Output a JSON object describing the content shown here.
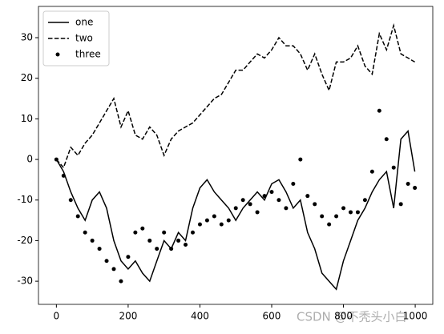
{
  "chart_data": {
    "type": "line",
    "x": [
      0,
      20,
      40,
      60,
      80,
      100,
      120,
      140,
      160,
      180,
      200,
      220,
      240,
      260,
      280,
      300,
      320,
      340,
      360,
      380,
      400,
      420,
      440,
      460,
      480,
      500,
      520,
      540,
      560,
      580,
      600,
      620,
      640,
      660,
      680,
      700,
      720,
      740,
      760,
      780,
      800,
      820,
      840,
      860,
      880,
      900,
      920,
      940,
      960,
      980,
      999
    ],
    "series": [
      {
        "name": "one",
        "color": "#000000",
        "linestyle": "-",
        "values": [
          0,
          -3,
          -8,
          -12,
          -15,
          -10,
          -8,
          -12,
          -20,
          -25,
          -27,
          -25,
          -28,
          -30,
          -25,
          -20,
          -22,
          -18,
          -20,
          -12,
          -7,
          -5,
          -8,
          -10,
          -12,
          -15,
          -12,
          -10,
          -8,
          -10,
          -6,
          -5,
          -8,
          -12,
          -10,
          -18,
          -22,
          -28,
          -30,
          -32,
          -25,
          -20,
          -15,
          -12,
          -8,
          -5,
          -3,
          -12,
          5,
          7,
          -3
        ]
      },
      {
        "name": "two",
        "color": "#000000",
        "linestyle": "--",
        "values": [
          0,
          -2,
          3,
          1,
          4,
          6,
          9,
          12,
          15,
          8,
          12,
          6,
          5,
          8,
          6,
          1,
          5,
          7,
          8,
          9,
          11,
          13,
          15,
          16,
          19,
          22,
          22,
          24,
          26,
          25,
          27,
          30,
          28,
          28,
          26,
          22,
          26,
          21,
          17,
          24,
          24,
          25,
          28,
          23,
          21,
          31,
          27,
          33,
          26,
          25,
          24
        ]
      },
      {
        "name": "three",
        "color": "#000000",
        "linestyle": ".",
        "values": [
          0,
          -4,
          -10,
          -14,
          -18,
          -20,
          -22,
          -25,
          -27,
          -30,
          -24,
          -18,
          -17,
          -20,
          -22,
          -18,
          -22,
          -20,
          -21,
          -18,
          -16,
          -15,
          -14,
          -16,
          -15,
          -12,
          -10,
          -11,
          -13,
          -9,
          -8,
          -10,
          -12,
          -6,
          0,
          -9,
          -11,
          -14,
          -16,
          -14,
          -12,
          -13,
          -13,
          -10,
          -3,
          12,
          5,
          -2,
          -11,
          -6,
          -7
        ]
      }
    ],
    "xlim": [
      -49.95,
      1048.95
    ],
    "ylim": [
      -35.7,
      37.7
    ],
    "xticks": [
      0,
      200,
      400,
      600,
      800,
      1000
    ],
    "yticks": [
      -30,
      -20,
      -10,
      0,
      10,
      20,
      30
    ],
    "legend": "upper left",
    "watermark": "CSDN @不秃头小白"
  }
}
